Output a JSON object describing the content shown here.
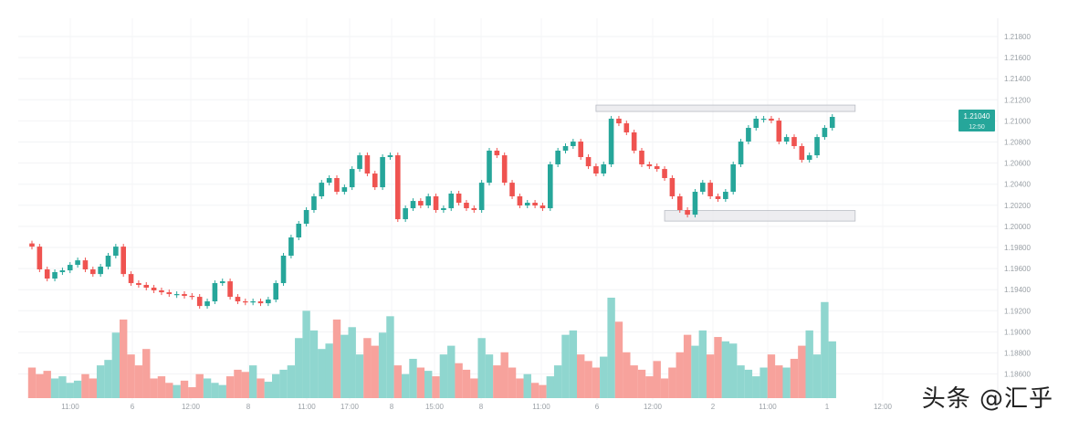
{
  "chart_data": {
    "type": "candlestick",
    "title": "",
    "grid": true,
    "colors": {
      "up": "#26a69a",
      "down": "#ef5350",
      "up_volume": "#8fd6cf",
      "down_volume": "#f7a29c",
      "zone": "#e6e6ea"
    },
    "y_tick_labels": [
      "1.21800",
      "1.21600",
      "1.21400",
      "1.21200",
      "1.21000",
      "1.20800",
      "1.20600",
      "1.20400",
      "1.20200",
      "1.20000",
      "1.19800",
      "1.19600",
      "1.19400",
      "1.19200",
      "1.19000",
      "1.18800",
      "1.18600"
    ],
    "ylim": [
      1.186,
      1.2185
    ],
    "x_tick_labels": [
      "11:00",
      "6",
      "12:00",
      "8",
      "11:00",
      "17:00",
      "8",
      "15:00",
      "8",
      "11:00",
      "6",
      "12:00",
      "2",
      "11:00",
      "1",
      "12:00"
    ],
    "current_price": {
      "value": "1.21040",
      "sub": "12:50"
    },
    "closes": [
      1.19808,
      1.19592,
      1.19505,
      1.19566,
      1.19583,
      1.19635,
      1.19678,
      1.19592,
      1.19548,
      1.19618,
      1.19722,
      1.19808,
      1.19548,
      1.19462,
      1.19445,
      1.19419,
      1.19393,
      1.19375,
      1.19358,
      1.19358,
      1.19341,
      1.19332,
      1.19245,
      1.19289,
      1.19462,
      1.19479,
      1.19332,
      1.19289,
      1.1928,
      1.19289,
      1.19271,
      1.19306,
      1.19462,
      1.19722,
      1.19895,
      1.20025,
      1.20155,
      1.20285,
      1.20414,
      1.20458,
      1.20328,
      1.20371,
      1.20544,
      1.20674,
      1.20501,
      1.20371,
      1.20657,
      1.20674,
      1.20068,
      1.20172,
      1.20241,
      1.20198,
      1.20285,
      1.20155,
      1.20172,
      1.20311,
      1.20224,
      1.20172,
      1.20155,
      1.20414,
      1.20718,
      1.20674,
      1.20414,
      1.20285,
      1.20198,
      1.20224,
      1.20198,
      1.20172,
      1.20588,
      1.20718,
      1.20761,
      1.20804,
      1.20657,
      1.2057,
      1.20501,
      1.20588,
      1.21021,
      1.20977,
      1.20891,
      1.20718,
      1.20588,
      1.2057,
      1.20544,
      1.20458,
      1.20285,
      1.20155,
      1.20111,
      1.20328,
      1.20414,
      1.20285,
      1.20259,
      1.20328,
      1.20588,
      1.20804,
      1.20934,
      1.21021,
      1.21021,
      1.21003,
      1.20804,
      1.20847,
      1.20761,
      1.20631,
      1.20674,
      1.20847,
      1.20934,
      1.21038
    ],
    "volumes": [
      28,
      22,
      25,
      18,
      20,
      14,
      16,
      22,
      18,
      30,
      35,
      60,
      72,
      40,
      30,
      45,
      18,
      20,
      14,
      12,
      16,
      10,
      22,
      18,
      14,
      12,
      20,
      26,
      24,
      30,
      18,
      15,
      22,
      26,
      30,
      55,
      80,
      62,
      45,
      50,
      72,
      58,
      65,
      40,
      55,
      48,
      60,
      75,
      30,
      22,
      36,
      28,
      25,
      20,
      40,
      48,
      32,
      26,
      18,
      55,
      40,
      30,
      42,
      28,
      18,
      22,
      14,
      12,
      20,
      30,
      58,
      62,
      40,
      34,
      28,
      38,
      92,
      70,
      42,
      30,
      26,
      20,
      34,
      18,
      28,
      42,
      58,
      48,
      62,
      40,
      56,
      52,
      50,
      30,
      26,
      20,
      28,
      40,
      30,
      28,
      36,
      48,
      62,
      40,
      88,
      52
    ],
    "zones": [
      {
        "from_index": 74,
        "to_index": 108,
        "top": 1.2115,
        "bottom": 1.2109
      },
      {
        "from_index": 83,
        "to_index": 108,
        "top": 1.2015,
        "bottom": 1.2005
      }
    ]
  },
  "watermark": "头条 @汇乎"
}
